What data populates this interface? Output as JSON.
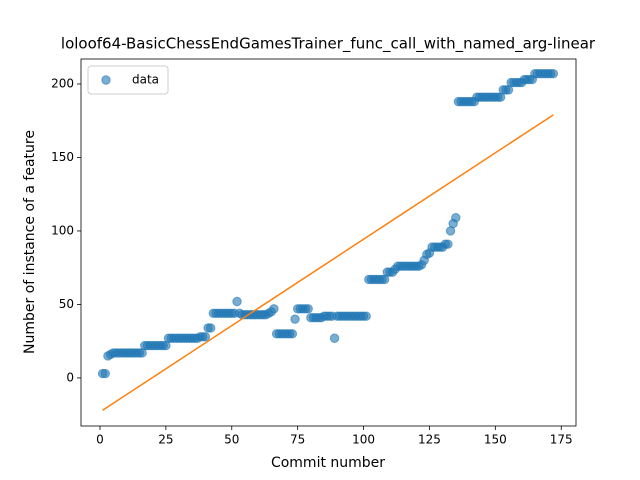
{
  "chart_data": {
    "type": "scatter",
    "title": "loloof64-BasicChessEndGamesTrainer_func_call_with_named_arg-linear",
    "xlabel": "Commit number",
    "ylabel": "Number of instance of a feature",
    "xlim": [
      -7.2,
      180.6
    ],
    "ylim": [
      -32.7,
      217
    ],
    "xticks": [
      0,
      25,
      50,
      75,
      100,
      125,
      150,
      175
    ],
    "yticks": [
      0,
      50,
      100,
      150,
      200
    ],
    "legend": "upper left",
    "series": [
      {
        "name": "data",
        "type": "scatter",
        "color": "#1f77b4",
        "x": [
          1,
          2,
          3,
          4,
          5,
          6,
          7,
          8,
          9,
          10,
          11,
          12,
          13,
          14,
          15,
          16,
          17,
          18,
          19,
          20,
          21,
          22,
          23,
          24,
          25,
          26,
          27,
          28,
          29,
          30,
          31,
          32,
          33,
          34,
          35,
          36,
          37,
          38,
          39,
          40,
          41,
          42,
          43,
          44,
          45,
          46,
          47,
          48,
          49,
          50,
          51,
          52,
          53,
          54,
          55,
          56,
          57,
          58,
          59,
          60,
          61,
          62,
          63,
          64,
          65,
          66,
          67,
          68,
          69,
          70,
          71,
          72,
          73,
          74,
          75,
          76,
          77,
          78,
          79,
          80,
          81,
          82,
          83,
          84,
          85,
          86,
          87,
          88,
          89,
          90,
          91,
          92,
          93,
          94,
          95,
          96,
          97,
          98,
          99,
          100,
          101,
          102,
          103,
          104,
          105,
          106,
          107,
          108,
          109,
          110,
          111,
          112,
          113,
          114,
          115,
          116,
          117,
          118,
          119,
          120,
          121,
          122,
          123,
          124,
          125,
          126,
          127,
          128,
          129,
          130,
          131,
          132,
          133,
          134,
          135,
          136,
          137,
          138,
          139,
          140,
          141,
          142,
          143,
          144,
          145,
          146,
          147,
          148,
          149,
          150,
          151,
          152,
          153,
          154,
          155,
          156,
          157,
          158,
          159,
          160,
          161,
          162,
          163,
          164,
          165,
          166,
          167,
          168,
          169,
          170,
          171,
          172
        ],
        "values": [
          3,
          3,
          15,
          16,
          17,
          17,
          17,
          17,
          17,
          17,
          17,
          17,
          17,
          17,
          17,
          17,
          22,
          22,
          22,
          22,
          22,
          22,
          22,
          22,
          22,
          27,
          27,
          27,
          27,
          27,
          27,
          27,
          27,
          27,
          27,
          27,
          27,
          28,
          28,
          28,
          34,
          34,
          44,
          44,
          44,
          44,
          44,
          44,
          44,
          44,
          44,
          52,
          44,
          43,
          43,
          43,
          43,
          43,
          43,
          43,
          43,
          43,
          43,
          44,
          45,
          47,
          30,
          30,
          30,
          30,
          30,
          30,
          30,
          40,
          47,
          47,
          47,
          47,
          47,
          41,
          41,
          41,
          41,
          41,
          42,
          42,
          42,
          42,
          27,
          42,
          42,
          42,
          42,
          42,
          42,
          42,
          42,
          42,
          42,
          42,
          42,
          67,
          67,
          67,
          67,
          67,
          67,
          67,
          72,
          72,
          72,
          74,
          76,
          76,
          76,
          76,
          76,
          76,
          76,
          76,
          76,
          77,
          80,
          84,
          85,
          89,
          89,
          89,
          89,
          89,
          91,
          91,
          100,
          105,
          109,
          188,
          188,
          188,
          188,
          188,
          188,
          188,
          191,
          191,
          191,
          191,
          191,
          191,
          191,
          191,
          191,
          191,
          196,
          196,
          196,
          201,
          201,
          201,
          201,
          201,
          203,
          203,
          203,
          203,
          207,
          207,
          207,
          207,
          207,
          207,
          207,
          207
        ]
      },
      {
        "type": "line",
        "color": "#ff7f0e",
        "x": [
          1,
          172
        ],
        "values": [
          -22,
          179
        ]
      }
    ]
  }
}
